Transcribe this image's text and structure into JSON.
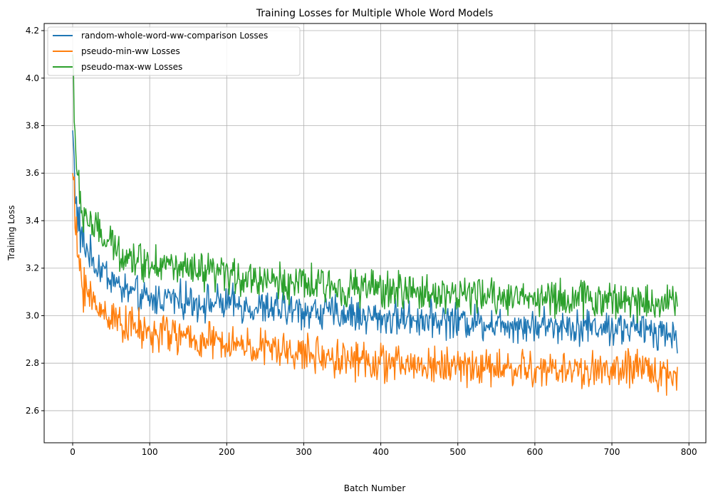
{
  "chart_data": {
    "type": "line",
    "title": "Training Losses for Multiple Whole Word Models",
    "xlabel": "Batch Number",
    "ylabel": "Training Loss",
    "xlim": [
      -37,
      822
    ],
    "ylim": [
      2.465,
      4.23
    ],
    "xticks": [
      0,
      100,
      200,
      300,
      400,
      500,
      600,
      700,
      800
    ],
    "yticks": [
      2.6,
      2.8,
      3.0,
      3.2,
      3.4,
      3.6,
      3.8,
      4.0,
      4.2
    ],
    "xtick_labels": [
      "0",
      "100",
      "200",
      "300",
      "400",
      "500",
      "600",
      "700",
      "800"
    ],
    "ytick_labels": [
      "2.6",
      "2.8",
      "3.0",
      "3.2",
      "3.4",
      "3.6",
      "3.8",
      "4.0",
      "4.2"
    ],
    "grid": true,
    "legend_position": "top-left",
    "x": [
      0,
      5,
      10,
      20,
      30,
      40,
      50,
      60,
      80,
      100,
      120,
      150,
      200,
      250,
      300,
      350,
      400,
      450,
      500,
      550,
      600,
      650,
      700,
      750,
      785
    ],
    "series": [
      {
        "name": "random-whole-word-ww-comparison Losses",
        "color": "#1f77b4",
        "values": [
          3.78,
          3.44,
          3.34,
          3.27,
          3.21,
          3.19,
          3.16,
          3.12,
          3.09,
          3.06,
          3.08,
          3.06,
          3.05,
          3.03,
          3.02,
          3.01,
          2.99,
          2.99,
          2.98,
          2.97,
          2.96,
          2.96,
          2.95,
          2.94,
          2.92
        ]
      },
      {
        "name": "pseudo-min-ww Losses",
        "color": "#ff7f0e",
        "values": [
          3.6,
          3.3,
          3.18,
          3.09,
          3.04,
          3.02,
          3.0,
          2.98,
          2.95,
          2.92,
          2.93,
          2.9,
          2.88,
          2.86,
          2.84,
          2.82,
          2.8,
          2.79,
          2.79,
          2.78,
          2.77,
          2.77,
          2.77,
          2.77,
          2.74
        ]
      },
      {
        "name": "pseudo-max-ww Losses",
        "color": "#2ca02c",
        "values": [
          4.1,
          3.6,
          3.45,
          3.41,
          3.36,
          3.32,
          3.3,
          3.27,
          3.24,
          3.22,
          3.22,
          3.18,
          3.17,
          3.15,
          3.13,
          3.12,
          3.11,
          3.1,
          3.09,
          3.08,
          3.08,
          3.07,
          3.07,
          3.06,
          3.06
        ]
      }
    ]
  }
}
